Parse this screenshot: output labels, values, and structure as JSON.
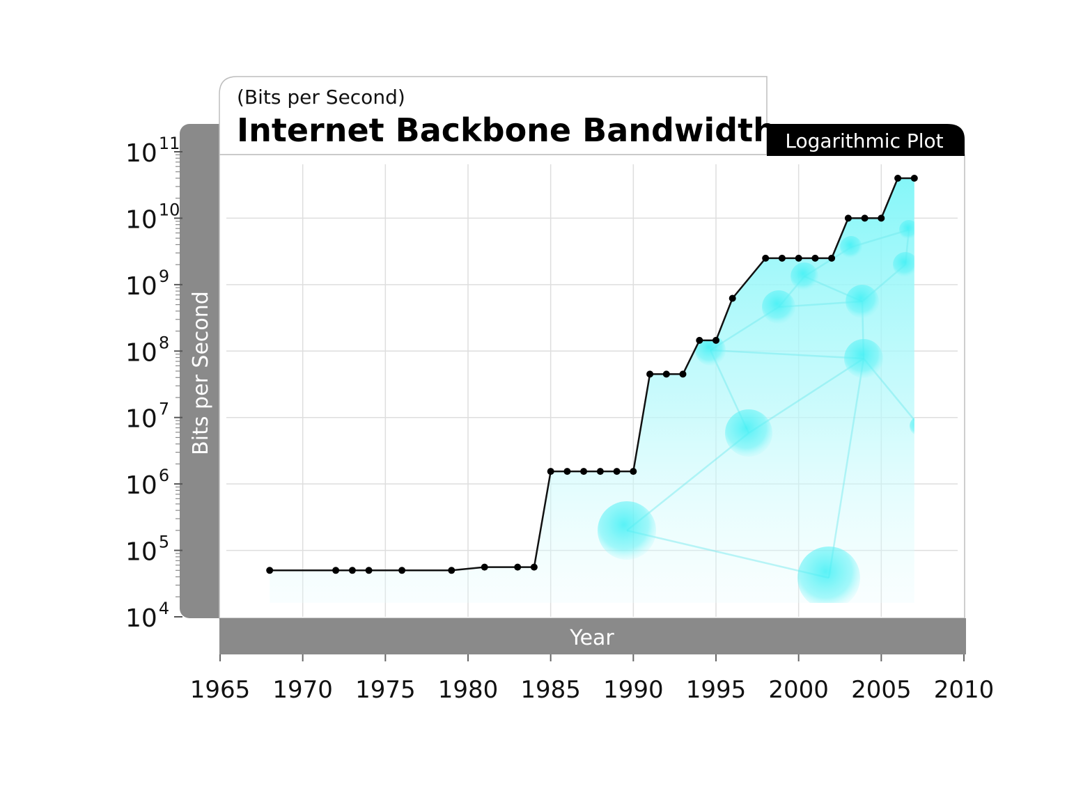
{
  "chart_data": {
    "type": "line",
    "subtitle": "(Bits per Second)",
    "title": "Internet Backbone Bandwidth",
    "badge": "Logarithmic Plot",
    "xlabel": "Year",
    "ylabel": "Bits per Second",
    "yscale": "log",
    "xlim": [
      1965,
      2010
    ],
    "ylim": [
      10000,
      100000000000
    ],
    "xticks": [
      "1965",
      "1970",
      "1975",
      "1980",
      "1985",
      "1990",
      "1995",
      "2000",
      "2005",
      "2010"
    ],
    "yticks": [
      {
        "base": "10",
        "exp": "11",
        "value": 100000000000
      },
      {
        "base": "10",
        "exp": "10",
        "value": 10000000000
      },
      {
        "base": "10",
        "exp": "9",
        "value": 1000000000
      },
      {
        "base": "10",
        "exp": "8",
        "value": 100000000
      },
      {
        "base": "10",
        "exp": "7",
        "value": 10000000
      },
      {
        "base": "10",
        "exp": "6",
        "value": 1000000
      },
      {
        "base": "10",
        "exp": "5",
        "value": 100000
      },
      {
        "base": "10",
        "exp": "4",
        "value": 10000
      }
    ],
    "grid": true,
    "colors": {
      "line": "#111111",
      "fill": "#5ff0f5",
      "axis_bar": "#8a8a8a",
      "badge": "#000000"
    },
    "series": [
      {
        "x": [
          1968,
          1972,
          1973,
          1974,
          1976,
          1979,
          1981,
          1983,
          1984,
          1985,
          1986,
          1987,
          1988,
          1989,
          1990,
          1991,
          1992,
          1993,
          1994,
          1995,
          1996,
          1998,
          1999,
          2000,
          2001,
          2002,
          2003,
          2004,
          2005,
          2006,
          2007
        ],
        "values": [
          50000,
          50000,
          50000,
          50000,
          50000,
          50000,
          56000,
          56000,
          56000,
          1544000,
          1544000,
          1544000,
          1544000,
          1544000,
          1544000,
          45000000,
          45000000,
          45000000,
          145000000,
          145000000,
          622000000,
          2500000000,
          2500000000,
          2500000000,
          2500000000,
          2500000000,
          10000000000,
          10000000000,
          10000000000,
          40000000000,
          40000000000
        ]
      }
    ]
  }
}
